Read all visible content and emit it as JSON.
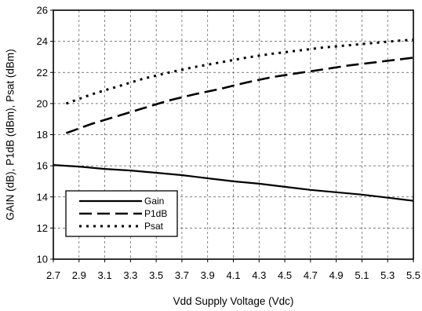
{
  "chart_data": {
    "type": "line",
    "title": "",
    "xlabel": "Vdd Supply Voltage (Vdc)",
    "ylabel": "GAIN (dB), P1dB (dBm), Psat (dBm)",
    "xlim": [
      2.7,
      5.5
    ],
    "ylim": [
      10,
      26
    ],
    "x_ticks": [
      "2.7",
      "2.9",
      "3.1",
      "3.3",
      "3.5",
      "3.7",
      "3.9",
      "4.1",
      "4.3",
      "4.5",
      "4.7",
      "4.9",
      "5.1",
      "5.3",
      "5.5"
    ],
    "y_ticks": [
      "10",
      "12",
      "14",
      "16",
      "18",
      "20",
      "22",
      "24",
      "26"
    ],
    "grid": true,
    "legend_position": "bottom-left",
    "series": [
      {
        "name": "Gain",
        "style": "solid",
        "color": "#000000",
        "x": [
          2.7,
          2.9,
          3.1,
          3.3,
          3.5,
          3.7,
          3.9,
          4.1,
          4.3,
          4.5,
          4.7,
          4.9,
          5.1,
          5.3,
          5.5
        ],
        "values": [
          16.05,
          15.95,
          15.8,
          15.7,
          15.55,
          15.4,
          15.2,
          15.0,
          14.85,
          14.65,
          14.45,
          14.3,
          14.15,
          13.95,
          13.75
        ]
      },
      {
        "name": "P1dB",
        "style": "dashed",
        "color": "#000000",
        "x": [
          2.8,
          3.0,
          3.2,
          3.4,
          3.6,
          3.8,
          4.0,
          4.2,
          4.4,
          4.6,
          4.8,
          5.0,
          5.2,
          5.4,
          5.5
        ],
        "values": [
          18.1,
          18.7,
          19.2,
          19.7,
          20.2,
          20.6,
          20.95,
          21.35,
          21.7,
          21.95,
          22.2,
          22.45,
          22.65,
          22.85,
          22.95
        ]
      },
      {
        "name": "Psat",
        "style": "dotted",
        "color": "#000000",
        "x": [
          2.8,
          3.0,
          3.2,
          3.4,
          3.6,
          3.8,
          4.0,
          4.2,
          4.4,
          4.6,
          4.8,
          5.0,
          5.2,
          5.4,
          5.5
        ],
        "values": [
          20.0,
          20.6,
          21.1,
          21.6,
          22.0,
          22.35,
          22.65,
          22.95,
          23.2,
          23.4,
          23.6,
          23.75,
          23.9,
          24.05,
          24.1
        ]
      }
    ]
  }
}
